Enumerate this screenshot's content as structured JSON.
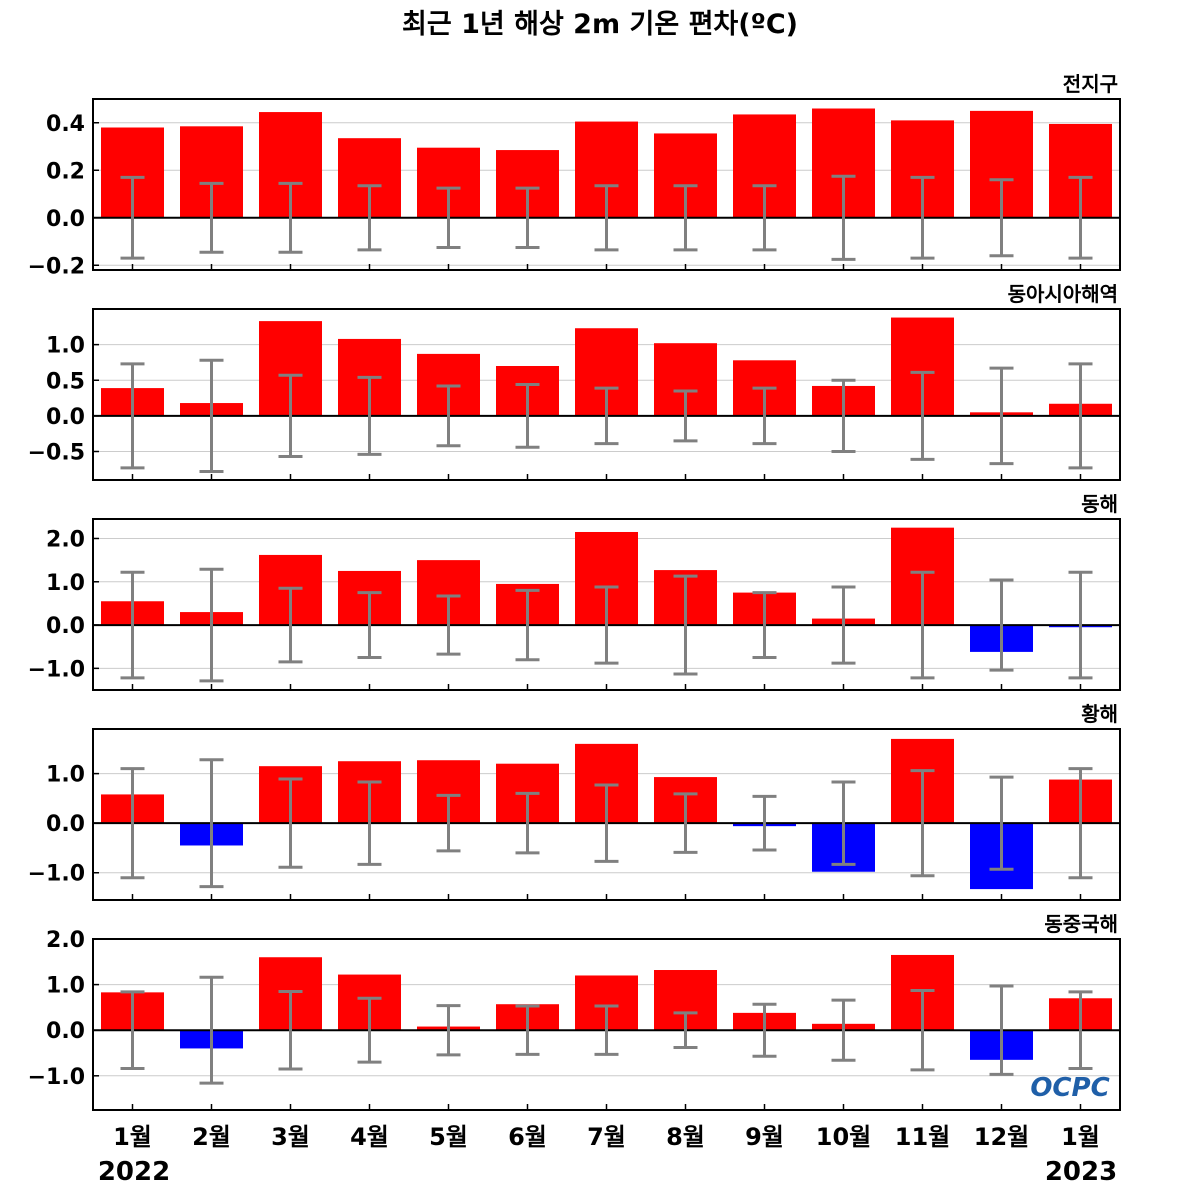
{
  "title": "최근 1년 해상 2m 기온 편차(ºC)",
  "logo": "OCPC",
  "colors": {
    "positive": "#ff0000",
    "negative": "#0000ff",
    "errorbar": "#808080",
    "zeroline": "#000000",
    "grid": "#cccccc"
  },
  "x_tick_labels": [
    "1월",
    "2월",
    "3월",
    "4월",
    "5월",
    "6월",
    "7월",
    "8월",
    "9월",
    "10월",
    "11월",
    "12월",
    "1월"
  ],
  "year_labels": {
    "start": "2022",
    "end": "2023"
  },
  "chart_data": [
    {
      "type": "bar",
      "title": "전지구",
      "ylim": [
        -0.22,
        0.5
      ],
      "yticks": [
        -0.2,
        0.0,
        0.2,
        0.4
      ],
      "ytick_labels": [
        "−0.2",
        "0.0",
        "0.2",
        "0.4"
      ],
      "values": [
        0.38,
        0.385,
        0.445,
        0.335,
        0.295,
        0.285,
        0.405,
        0.355,
        0.435,
        0.46,
        0.41,
        0.45,
        0.395
      ],
      "errors": [
        0.17,
        0.145,
        0.145,
        0.135,
        0.125,
        0.125,
        0.135,
        0.135,
        0.135,
        0.175,
        0.17,
        0.16,
        0.17
      ]
    },
    {
      "type": "bar",
      "title": "동아시아해역",
      "ylim": [
        -0.9,
        1.5
      ],
      "yticks": [
        -0.5,
        0.0,
        0.5,
        1.0
      ],
      "ytick_labels": [
        "−0.5",
        "0.0",
        "0.5",
        "1.0"
      ],
      "values": [
        0.39,
        0.18,
        1.33,
        1.08,
        0.87,
        0.7,
        1.23,
        1.02,
        0.78,
        0.42,
        1.38,
        0.05,
        0.17
      ],
      "errors": [
        0.73,
        0.78,
        0.57,
        0.54,
        0.42,
        0.44,
        0.39,
        0.35,
        0.39,
        0.5,
        0.61,
        0.67,
        0.73
      ]
    },
    {
      "type": "bar",
      "title": "동해",
      "ylim": [
        -1.5,
        2.45
      ],
      "yticks": [
        -1.0,
        0.0,
        1.0,
        2.0
      ],
      "ytick_labels": [
        "−1.0",
        "0.0",
        "1.0",
        "2.0"
      ],
      "values": [
        0.55,
        0.3,
        1.62,
        1.25,
        1.5,
        0.95,
        2.15,
        1.27,
        0.75,
        0.15,
        2.25,
        -0.62,
        -0.05
      ],
      "errors": [
        1.22,
        1.29,
        0.85,
        0.75,
        0.67,
        0.8,
        0.88,
        1.13,
        0.75,
        0.88,
        1.22,
        1.04,
        1.22
      ]
    },
    {
      "type": "bar",
      "title": "황해",
      "ylim": [
        -1.55,
        1.9
      ],
      "yticks": [
        -1.0,
        0.0,
        1.0
      ],
      "ytick_labels": [
        "−1.0",
        "0.0",
        "1.0"
      ],
      "values": [
        0.58,
        -0.45,
        1.15,
        1.25,
        1.27,
        1.2,
        1.6,
        0.93,
        -0.06,
        -0.98,
        1.7,
        -1.33,
        0.88
      ],
      "errors": [
        1.1,
        1.28,
        0.89,
        0.83,
        0.56,
        0.6,
        0.77,
        0.59,
        0.54,
        0.83,
        1.06,
        0.93,
        1.1
      ]
    },
    {
      "type": "bar",
      "title": "동중국해",
      "ylim": [
        -1.75,
        2.0
      ],
      "yticks": [
        -1.0,
        0.0,
        1.0,
        2.0
      ],
      "ytick_labels": [
        "−1.0",
        "0.0",
        "1.0",
        "2.0"
      ],
      "values": [
        0.83,
        -0.4,
        1.6,
        1.22,
        0.08,
        0.57,
        1.2,
        1.32,
        0.38,
        0.14,
        1.65,
        -0.65,
        0.7
      ],
      "errors": [
        0.84,
        1.16,
        0.85,
        0.7,
        0.54,
        0.53,
        0.53,
        0.38,
        0.57,
        0.66,
        0.87,
        0.97,
        0.84
      ]
    }
  ]
}
